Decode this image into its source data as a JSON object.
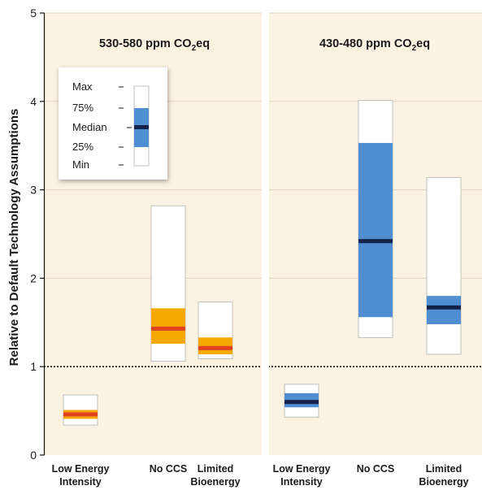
{
  "chart_data": {
    "type": "boxplot",
    "ylabel": "Relative to Default Technology Assumptions",
    "ylim": [
      0,
      5
    ],
    "yticks": [
      0,
      1,
      2,
      3,
      4,
      5
    ],
    "reference_line": 1,
    "grid": true,
    "categories": [
      "Low Energy Intensity",
      "No CCS",
      "Limited Bioenergy"
    ],
    "category_lines": [
      [
        "Low Energy",
        "Intensity"
      ],
      [
        "No CCS"
      ],
      [
        "Limited",
        "Bioenergy"
      ]
    ],
    "panels": [
      {
        "title": "530-580 ppm CO",
        "title_sub": "2",
        "title_suffix": "eq",
        "range_color": "#f5a800",
        "median_color": "#e0421c",
        "boxes": [
          {
            "category": "Low Energy Intensity",
            "min": 0.34,
            "q1": 0.41,
            "median": 0.46,
            "q3": 0.51,
            "max": 0.68
          },
          {
            "category": "No CCS",
            "min": 1.06,
            "q1": 1.26,
            "median": 1.43,
            "q3": 1.66,
            "max": 2.82
          },
          {
            "category": "Limited Bioenergy",
            "min": 1.09,
            "q1": 1.14,
            "median": 1.21,
            "q3": 1.33,
            "max": 1.73
          }
        ]
      },
      {
        "title": "430-480 ppm CO",
        "title_sub": "2",
        "title_suffix": "eq",
        "range_color": "#4f8ed0",
        "median_color": "#13224b",
        "boxes": [
          {
            "category": "Low Energy Intensity",
            "min": 0.43,
            "q1": 0.54,
            "median": 0.6,
            "q3": 0.7,
            "max": 0.8
          },
          {
            "category": "No CCS",
            "min": 1.33,
            "q1": 1.56,
            "median": 2.42,
            "q3": 3.53,
            "max": 4.01
          },
          {
            "category": "Limited Bioenergy",
            "min": 1.14,
            "q1": 1.48,
            "median": 1.67,
            "q3": 1.8,
            "max": 3.14
          }
        ]
      }
    ],
    "legend": {
      "position": "top-left",
      "labels": [
        "Max",
        "75%",
        "Median",
        "25%",
        "Min"
      ],
      "fill_color": "#4f8ed0",
      "median_color": "#13224b"
    }
  }
}
